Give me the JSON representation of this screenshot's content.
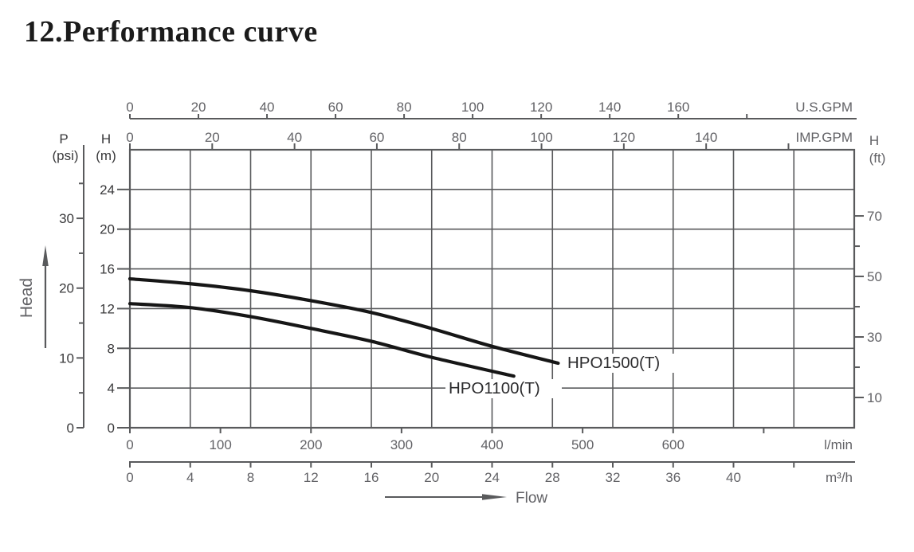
{
  "page": {
    "title": "12.Performance curve"
  },
  "colors": {
    "grid": "#595a5c",
    "axis": "#595a5c",
    "tick_text": "#626266",
    "left_axis_text": "#39393b",
    "curve": "#161616",
    "curve_label_text": "#2c2c2e",
    "title_text": "#1b1b1b",
    "background": "#ffffff"
  },
  "chart_data": {
    "type": "line",
    "title": "12.Performance curve",
    "grid": "on",
    "xlim_lmin": [
      0,
      800
    ],
    "ylim_m": [
      0,
      28
    ],
    "x_axes": [
      {
        "id": "usgpm",
        "unit_label": "U.S.GPM",
        "ticks": [
          0,
          20,
          40,
          60,
          80,
          100,
          120,
          140,
          160
        ],
        "extra_unlabeled_ticks": [
          180
        ],
        "lmin_per_unit": 3.78541,
        "position": "top-outer"
      },
      {
        "id": "impgpm",
        "unit_label": "IMP.GPM",
        "ticks": [
          0,
          20,
          40,
          60,
          80,
          100,
          120,
          140
        ],
        "extra_unlabeled_ticks": [
          160
        ],
        "lmin_per_unit": 4.54609,
        "position": "top-border"
      },
      {
        "id": "lmin",
        "unit_label": "l/min",
        "ticks": [
          0,
          100,
          200,
          300,
          400,
          500,
          600
        ],
        "extra_unlabeled_ticks": [
          700
        ],
        "lmin_per_unit": 1,
        "position": "bottom-border"
      },
      {
        "id": "m3h",
        "unit_label": "m³/h",
        "ticks": [
          0,
          4,
          8,
          12,
          16,
          20,
          24,
          28,
          32,
          36,
          40
        ],
        "extra_unlabeled_ticks": [
          44
        ],
        "lmin_per_unit": 16.6667,
        "position": "bottom-outer"
      }
    ],
    "y_axes": [
      {
        "id": "h_m",
        "name_label": "H",
        "unit_label": "(m)",
        "ticks": [
          0,
          4,
          8,
          12,
          16,
          20,
          24
        ],
        "minor_ticks": [],
        "m_per_unit": 1,
        "side": "left-border"
      },
      {
        "id": "p_psi",
        "name_label": "P",
        "unit_label": "(psi)",
        "ticks": [
          0,
          10,
          20,
          30
        ],
        "minor_ticks": [
          5,
          15,
          25,
          35
        ],
        "m_per_unit": 0.70307,
        "side": "left-outer"
      },
      {
        "id": "h_ft",
        "name_label": "H",
        "unit_label": "(ft)",
        "ticks": [
          10,
          30,
          50,
          70
        ],
        "minor_ticks": [
          20,
          40,
          60
        ],
        "m_per_unit": 0.3048,
        "side": "right-border"
      }
    ],
    "gridline_step_x_m3h": 4,
    "gridline_step_y_m": 4,
    "series": [
      {
        "name": "HPO1500(T)",
        "points_lmin_m": [
          [
            0,
            15.0
          ],
          [
            67,
            14.5
          ],
          [
            133,
            13.8
          ],
          [
            200,
            12.8
          ],
          [
            267,
            11.6
          ],
          [
            333,
            10.0
          ],
          [
            400,
            8.2
          ],
          [
            473,
            6.5
          ]
        ]
      },
      {
        "name": "HPO1100(T)",
        "points_lmin_m": [
          [
            0,
            12.5
          ],
          [
            67,
            12.1
          ],
          [
            133,
            11.2
          ],
          [
            200,
            10.0
          ],
          [
            267,
            8.7
          ],
          [
            333,
            7.1
          ],
          [
            424,
            5.2
          ]
        ]
      }
    ],
    "annotations": {
      "head_arrow_label": "Head",
      "flow_arrow_label": "Flow"
    }
  }
}
